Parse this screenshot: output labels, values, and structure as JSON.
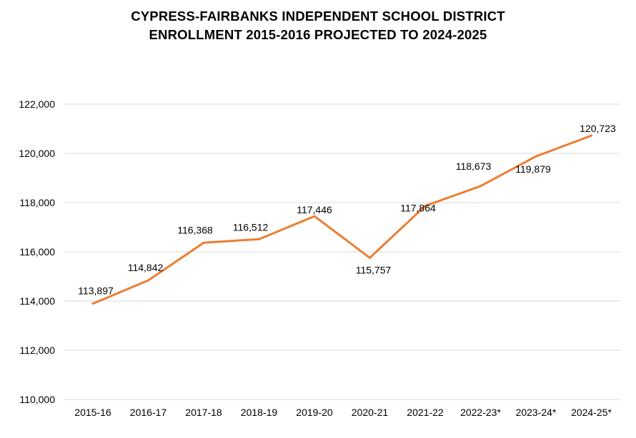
{
  "chart_data": {
    "type": "line",
    "title_lines": [
      "CYPRESS-FAIRBANKS INDEPENDENT SCHOOL DISTRICT",
      "ENROLLMENT 2015-2016 PROJECTED TO 2024-2025"
    ],
    "xlabel": "",
    "ylabel": "",
    "categories": [
      "2015-16",
      "2016-17",
      "2017-18",
      "2018-19",
      "2019-20",
      "2020-21",
      "2021-22",
      "2022-23*",
      "2023-24*",
      "2024-25*"
    ],
    "series": [
      {
        "values": [
          113897,
          114842,
          116368,
          116512,
          117446,
          115757,
          117864,
          118673,
          119879,
          120723
        ],
        "data_labels": [
          "113,897",
          "114,842",
          "116,368",
          "116,512",
          "117,446",
          "115,757",
          "117,864",
          "118,673",
          "119,879",
          "120,723"
        ],
        "color": "#ED7D31"
      }
    ],
    "ylim": [
      110000,
      122000
    ],
    "y_ticks": [
      110000,
      112000,
      114000,
      116000,
      118000,
      120000,
      122000
    ],
    "y_tick_labels": [
      "110,000",
      "112,000",
      "114,000",
      "116,000",
      "118,000",
      "120,000",
      "122,000"
    ],
    "grid": true,
    "legend": "none",
    "gridline_color": "#D9D9D9"
  }
}
